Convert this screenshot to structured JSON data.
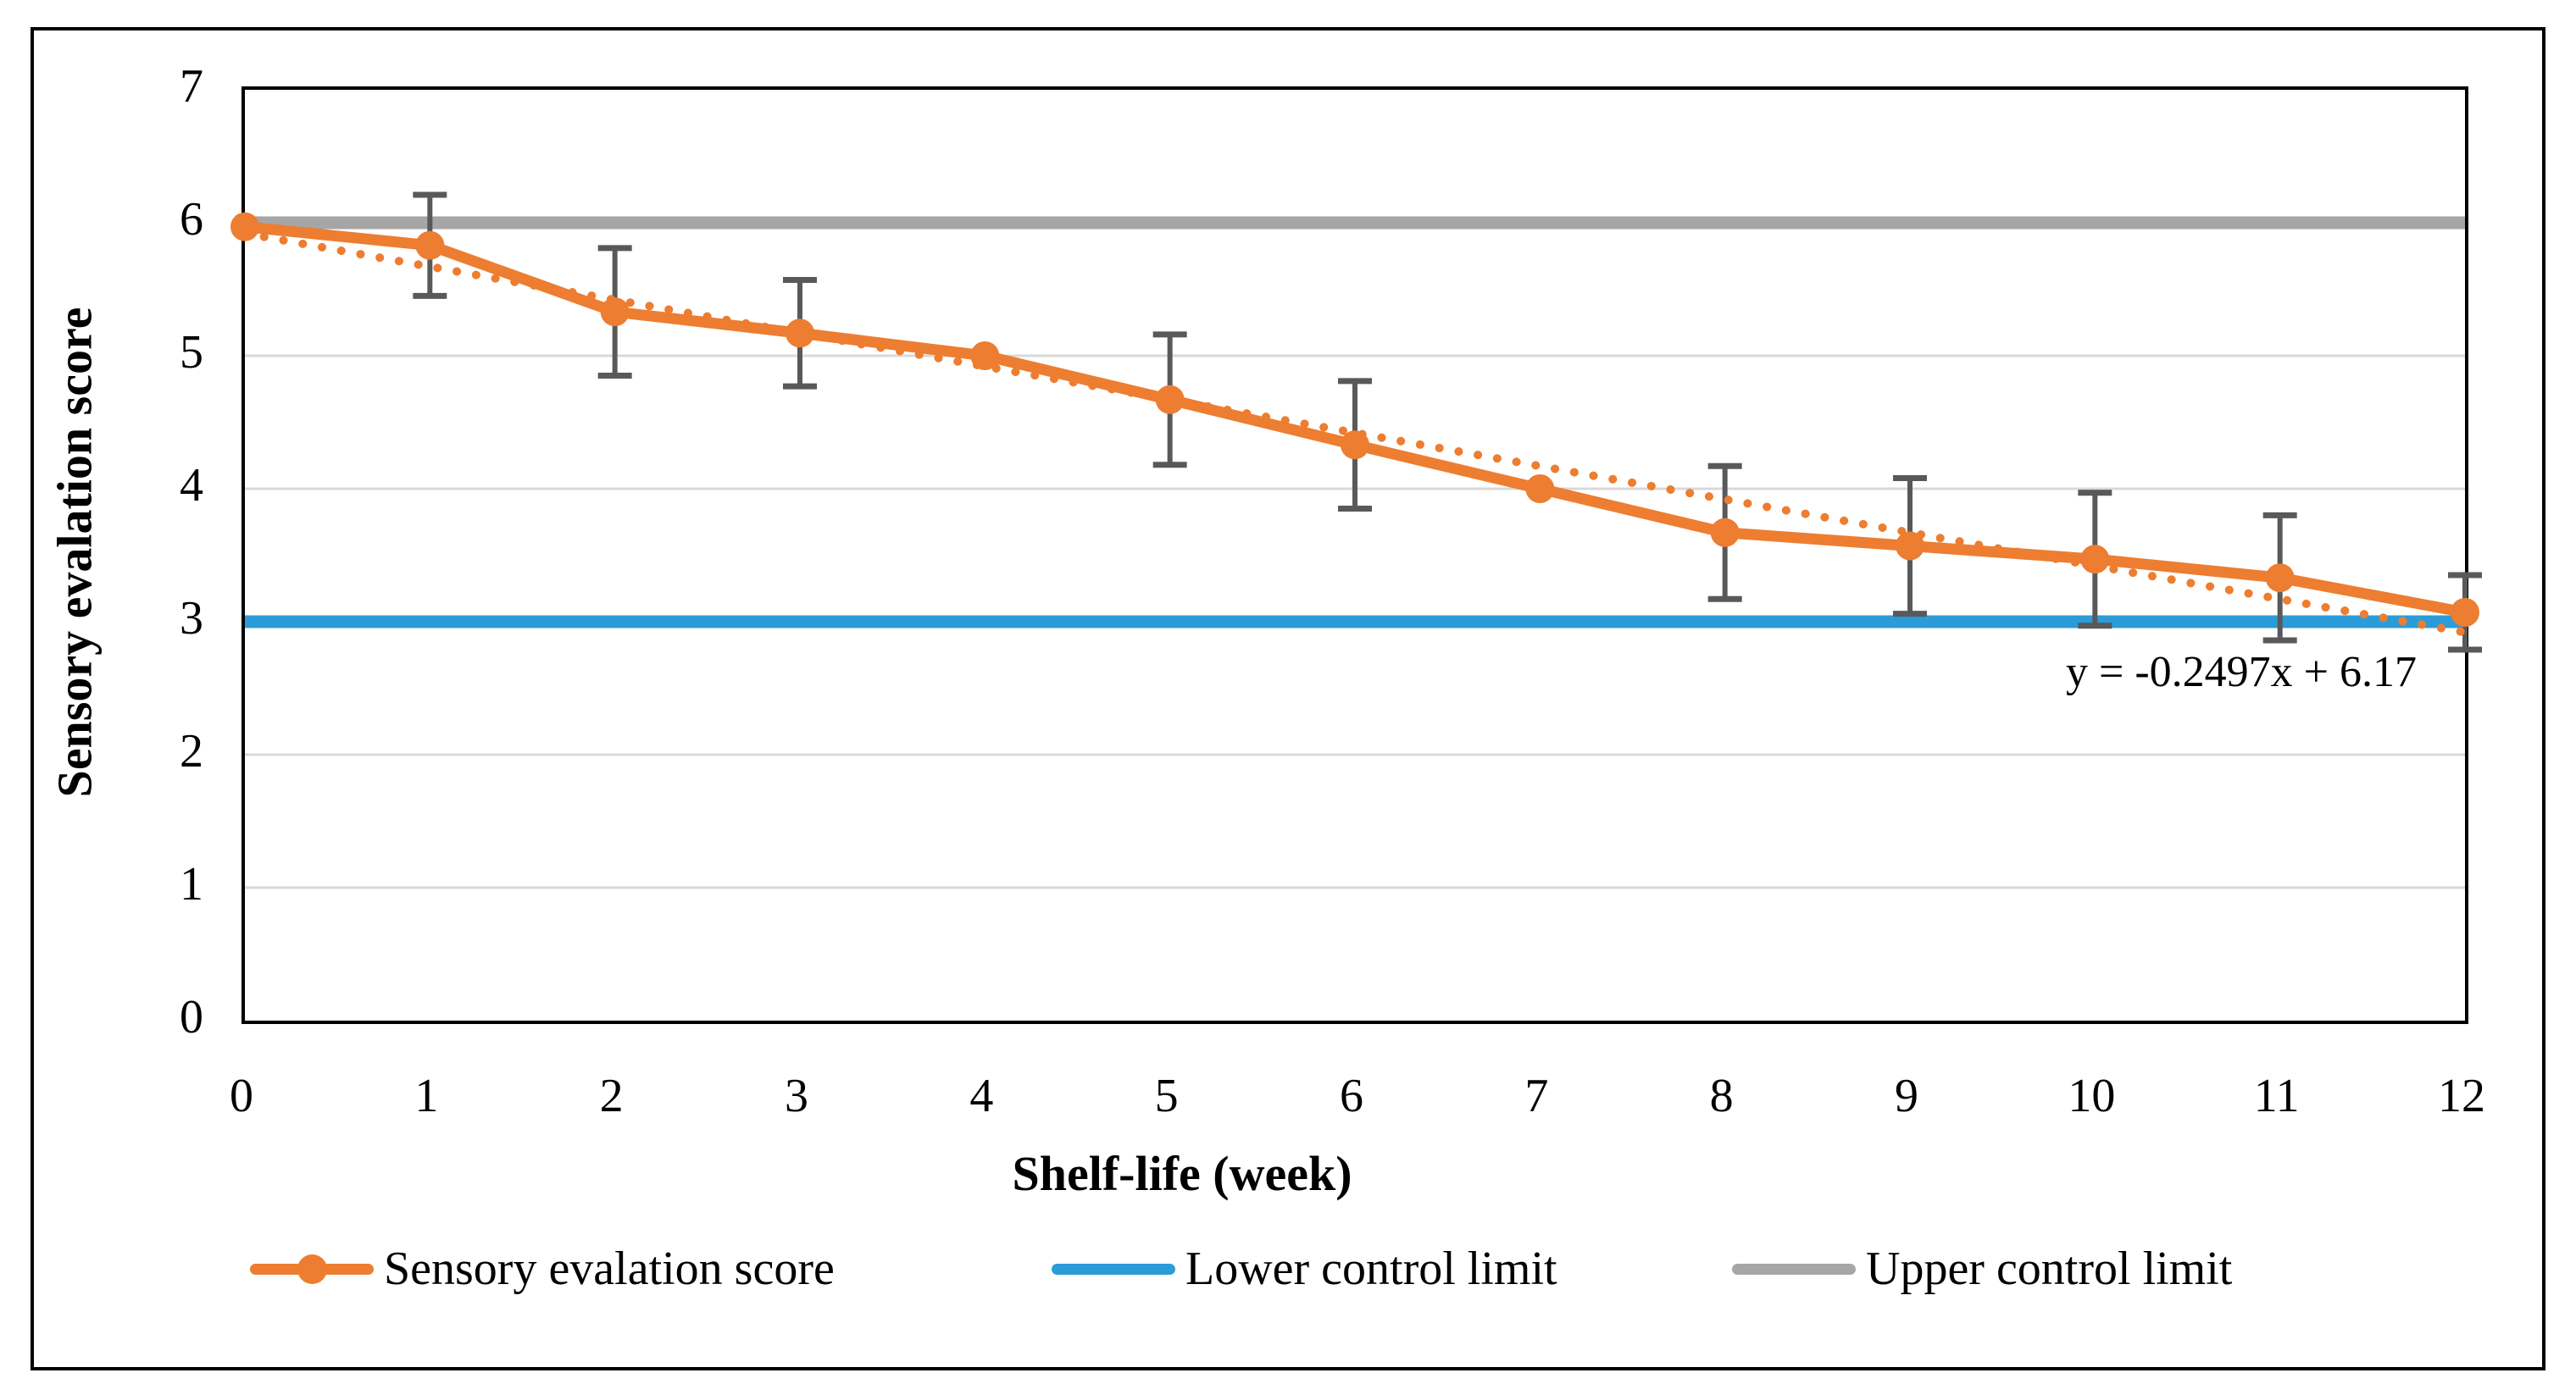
{
  "annotation": {
    "equation": "y = -0.2497x + 6.17"
  },
  "colors": {
    "series_orange": "#ED7D31",
    "lower_limit_blue": "#2B9CD8",
    "upper_limit_gray": "#A6A6A6",
    "error_bar": "#595959",
    "gridline": "#D9D9D9",
    "frame": "#000000"
  },
  "legend": {
    "items": [
      {
        "label": "Sensory evalation score",
        "swatch": "line-marker",
        "color": "#ED7D31"
      },
      {
        "label": "Lower control limit",
        "swatch": "line",
        "color": "#2B9CD8"
      },
      {
        "label": "Upper control limit",
        "swatch": "line",
        "color": "#A6A6A6"
      }
    ]
  },
  "chart_data": {
    "type": "line",
    "title": "",
    "xlabel": "Shelf-life (week)",
    "ylabel": "Sensory evalation score",
    "x": [
      0,
      1,
      2,
      3,
      4,
      5,
      6,
      7,
      8,
      9,
      10,
      11,
      12
    ],
    "ylim": [
      0,
      7
    ],
    "yticks": [
      0,
      1,
      2,
      3,
      4,
      5,
      6,
      7
    ],
    "grid": "horizontal",
    "legend_position": "bottom",
    "series": [
      {
        "name": "Sensory evalation score",
        "type": "line-markers",
        "color": "#ED7D31",
        "values": [
          5.97,
          5.83,
          5.33,
          5.17,
          5.0,
          4.67,
          4.33,
          4.0,
          3.67,
          3.57,
          3.47,
          3.33,
          3.07
        ],
        "error_bars": [
          0,
          0.38,
          0.48,
          0.4,
          0,
          0.49,
          0.48,
          0,
          0.5,
          0.51,
          0.5,
          0.47,
          0.28
        ]
      },
      {
        "name": "Lower control limit",
        "type": "hline",
        "color": "#2B9CD8",
        "value": 3
      },
      {
        "name": "Upper control limit",
        "type": "hline",
        "color": "#A6A6A6",
        "value": 6
      },
      {
        "name": "Linear trendline",
        "type": "dotted-trend",
        "color": "#ED7D31",
        "start": 5.92,
        "end": 2.92,
        "equation": "y = -0.2497x + 6.17"
      }
    ]
  }
}
